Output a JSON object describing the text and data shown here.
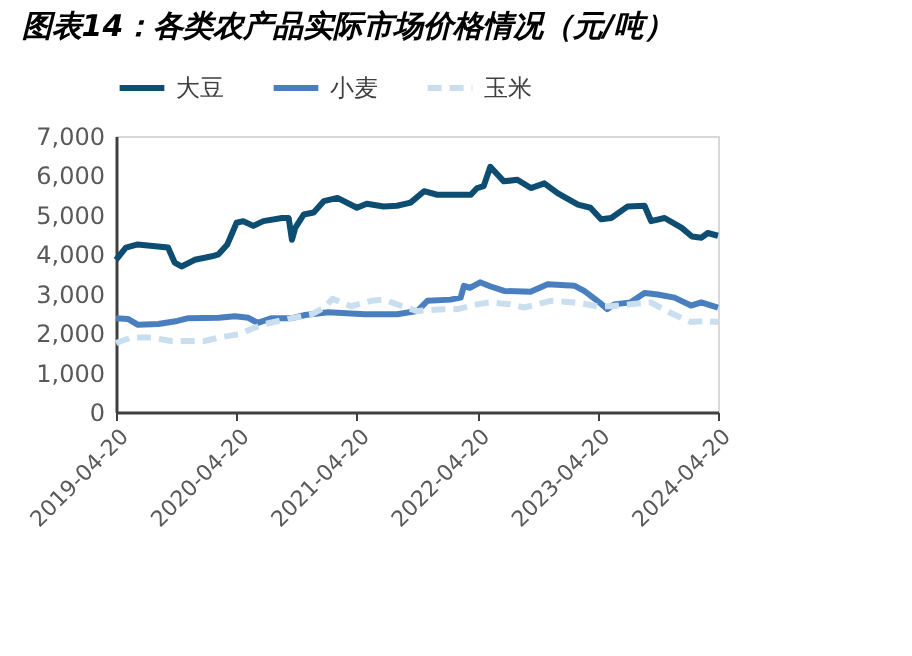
{
  "chart_data": {
    "type": "line",
    "title": "图表14：各类农产品实际市场价格情况（元/吨）",
    "legend": "top",
    "xlim": [
      "2019-04-20",
      "2024-04-20"
    ],
    "xticks": [
      "2019-04-20",
      "2020-04-20",
      "2021-04-20",
      "2022-04-20",
      "2023-04-20",
      "2024-04-20"
    ],
    "ylim": [
      0,
      7000
    ],
    "yticks": [
      0,
      {
        "value": 1000,
        "label": "1,000"
      },
      {
        "value": 2000,
        "label": "2,000"
      },
      {
        "value": 3000,
        "label": "3,000"
      },
      {
        "value": 4000,
        "label": "4,000"
      },
      {
        "value": 5000,
        "label": "5,000"
      },
      {
        "value": 6000,
        "label": "6,000"
      },
      {
        "value": 7000,
        "label": "7,000"
      }
    ],
    "series": [
      {
        "name": "大豆",
        "color": "#0e4d72",
        "line_style": "solid",
        "x": [
          "2019-04-20",
          "2019-05-20",
          "2019-06-25",
          "2019-08-25",
          "2019-09-25",
          "2019-10-15",
          "2019-11-05",
          "2019-12-15",
          "2020-02-05",
          "2020-02-25",
          "2020-03-23",
          "2020-04-20",
          "2020-05-10",
          "2020-06-10",
          "2020-07-10",
          "2020-09-05",
          "2020-09-25",
          "2020-10-05",
          "2020-10-15",
          "2020-11-10",
          "2020-12-10",
          "2021-01-10",
          "2021-02-20",
          "2021-04-20",
          "2021-05-20",
          "2021-07-10",
          "2021-08-20",
          "2021-09-30",
          "2021-11-10",
          "2021-12-20",
          "2022-04-01",
          "2022-04-20",
          "2022-05-10",
          "2022-05-30",
          "2022-07-10",
          "2022-08-20",
          "2022-09-30",
          "2022-11-10",
          "2022-12-20",
          "2023-02-20",
          "2023-03-30",
          "2023-05-01",
          "2023-06-01",
          "2023-07-20",
          "2023-09-10",
          "2023-09-30",
          "2023-11-10",
          "2024-01-01",
          "2024-02-01",
          "2024-03-01",
          "2024-03-20",
          "2024-04-20"
        ],
        "values": [
          3860,
          4170,
          4250,
          4200,
          4170,
          3790,
          3690,
          3860,
          3950,
          4000,
          4250,
          4800,
          4840,
          4720,
          4840,
          4920,
          4920,
          4370,
          4670,
          5010,
          5060,
          5350,
          5430,
          5180,
          5280,
          5210,
          5230,
          5310,
          5600,
          5510,
          5510,
          5680,
          5730,
          6220,
          5850,
          5890,
          5680,
          5800,
          5550,
          5260,
          5180,
          4890,
          4920,
          5210,
          5230,
          4840,
          4920,
          4670,
          4450,
          4420,
          4540,
          4470
        ]
      },
      {
        "name": "小麦",
        "color": "#4a7fbf",
        "line_style": "solid",
        "x": [
          "2019-04-20",
          "2019-05-26",
          "2019-06-26",
          "2019-08-26",
          "2019-10-23",
          "2019-11-26",
          "2020-02-26",
          "2020-04-15",
          "2020-05-26",
          "2020-06-23",
          "2020-08-05",
          "2020-10-05",
          "2020-11-14",
          "2021-01-23",
          "2021-05-14",
          "2021-08-20",
          "2021-10-20",
          "2021-11-20",
          "2022-01-29",
          "2022-03-01",
          "2022-03-11",
          "2022-03-29",
          "2022-04-29",
          "2022-05-29",
          "2022-07-11",
          "2022-09-29",
          "2022-11-20",
          "2023-02-10",
          "2023-03-11",
          "2023-04-20",
          "2023-05-20",
          "2023-06-10",
          "2023-07-29",
          "2023-09-10",
          "2023-10-20",
          "2023-12-10",
          "2024-01-29",
          "2024-02-29",
          "2024-04-20"
        ],
        "values": [
          2380,
          2360,
          2210,
          2230,
          2310,
          2380,
          2390,
          2430,
          2390,
          2260,
          2380,
          2380,
          2460,
          2530,
          2480,
          2480,
          2560,
          2820,
          2850,
          2900,
          3200,
          3150,
          3290,
          3190,
          3070,
          3050,
          3240,
          3200,
          3070,
          2820,
          2610,
          2730,
          2780,
          3020,
          2980,
          2900,
          2700,
          2780,
          2650
        ]
      },
      {
        "name": "玉米",
        "color": "#c9dff0",
        "line_style": "dashed",
        "x": [
          "2019-04-20",
          "2019-06-05",
          "2019-08-05",
          "2019-10-05",
          "2020-01-14",
          "2020-02-26",
          "2020-04-26",
          "2020-06-05",
          "2020-07-14",
          "2020-10-05",
          "2020-12-05",
          "2021-01-11",
          "2021-02-05",
          "2021-04-02",
          "2021-06-02",
          "2021-07-11",
          "2021-08-20",
          "2021-10-20",
          "2021-12-20",
          "2022-02-20",
          "2022-04-20",
          "2022-05-29",
          "2022-07-29",
          "2022-09-10",
          "2022-11-29",
          "2023-02-20",
          "2023-04-20",
          "2023-05-29",
          "2023-07-29",
          "2023-09-29",
          "2023-11-29",
          "2024-01-29",
          "2024-03-11",
          "2024-04-20"
        ],
        "values": [
          1750,
          1890,
          1890,
          1800,
          1800,
          1890,
          1970,
          2110,
          2230,
          2380,
          2480,
          2650,
          2870,
          2680,
          2820,
          2850,
          2730,
          2560,
          2600,
          2610,
          2730,
          2780,
          2730,
          2650,
          2820,
          2770,
          2680,
          2680,
          2730,
          2780,
          2510,
          2280,
          2310,
          2280
        ]
      }
    ]
  }
}
